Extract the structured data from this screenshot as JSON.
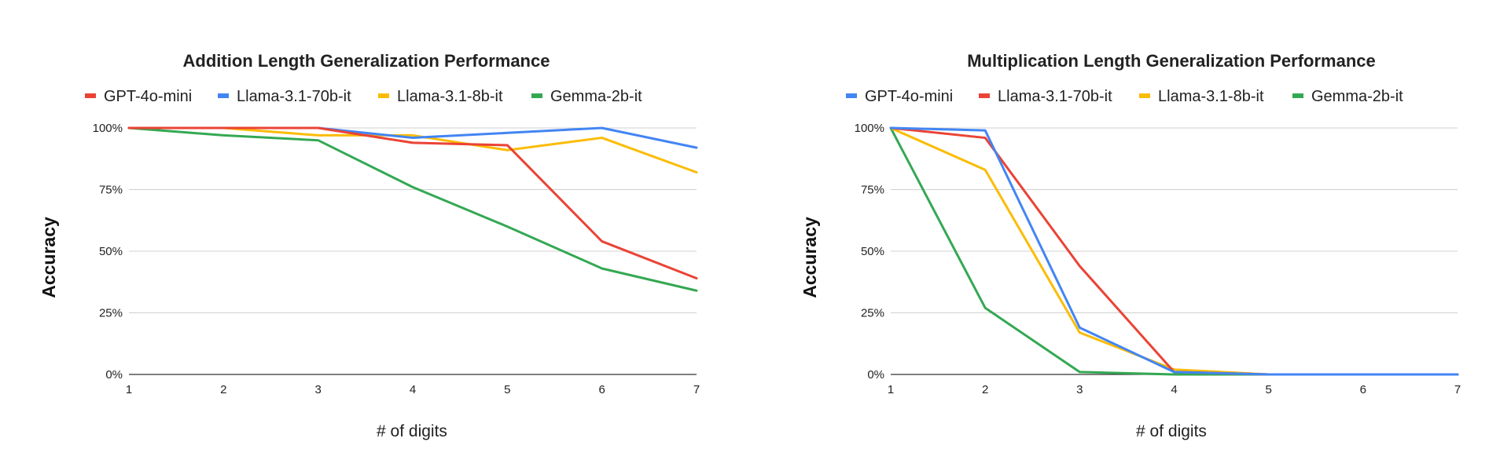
{
  "chart_data": [
    {
      "type": "line",
      "title": "Addition Length Generalization Performance",
      "xlabel": "# of digits",
      "ylabel": "Accuracy",
      "x": [
        1,
        2,
        3,
        4,
        5,
        6,
        7
      ],
      "x_tick_labels": [
        "1",
        "2",
        "3",
        "4",
        "5",
        "6",
        "7"
      ],
      "y_tick_labels": [
        "0%",
        "25%",
        "50%",
        "75%",
        "100%"
      ],
      "y_ticks": [
        0,
        25,
        50,
        75,
        100
      ],
      "ylim": [
        0,
        100
      ],
      "xlim": [
        1,
        7
      ],
      "grid": true,
      "legend_position": "top",
      "series": [
        {
          "name": "GPT-4o-mini",
          "color": "#ea4335",
          "values": [
            100,
            100,
            100,
            94,
            93,
            54,
            39
          ]
        },
        {
          "name": "Llama-3.1-70b-it",
          "color": "#4285f4",
          "values": [
            100,
            100,
            100,
            96,
            98,
            100,
            92
          ]
        },
        {
          "name": "Llama-3.1-8b-it",
          "color": "#fbbc04",
          "values": [
            100,
            100,
            97,
            97,
            91,
            96,
            82
          ]
        },
        {
          "name": "Gemma-2b-it",
          "color": "#34a853",
          "values": [
            100,
            97,
            95,
            76,
            60,
            43,
            34
          ]
        }
      ]
    },
    {
      "type": "line",
      "title": "Multiplication Length Generalization Performance",
      "xlabel": "# of digits",
      "ylabel": "Accuracy",
      "x": [
        1,
        2,
        3,
        4,
        5,
        6,
        7
      ],
      "x_tick_labels": [
        "1",
        "2",
        "3",
        "4",
        "5",
        "6",
        "7"
      ],
      "y_tick_labels": [
        "0%",
        "25%",
        "50%",
        "75%",
        "100%"
      ],
      "y_ticks": [
        0,
        25,
        50,
        75,
        100
      ],
      "ylim": [
        0,
        100
      ],
      "xlim": [
        1,
        7
      ],
      "grid": true,
      "legend_position": "top",
      "series": [
        {
          "name": "GPT-4o-mini",
          "color": "#4285f4",
          "values": [
            100,
            99,
            19,
            1,
            0,
            0,
            0
          ]
        },
        {
          "name": "Llama-3.1-70b-it",
          "color": "#ea4335",
          "values": [
            100,
            96,
            44,
            1,
            0,
            0,
            0
          ]
        },
        {
          "name": "Llama-3.1-8b-it",
          "color": "#fbbc04",
          "values": [
            100,
            83,
            17,
            2,
            0,
            0,
            0
          ]
        },
        {
          "name": "Gemma-2b-it",
          "color": "#34a853",
          "values": [
            100,
            27,
            1,
            0,
            0,
            0,
            0
          ]
        }
      ]
    }
  ]
}
